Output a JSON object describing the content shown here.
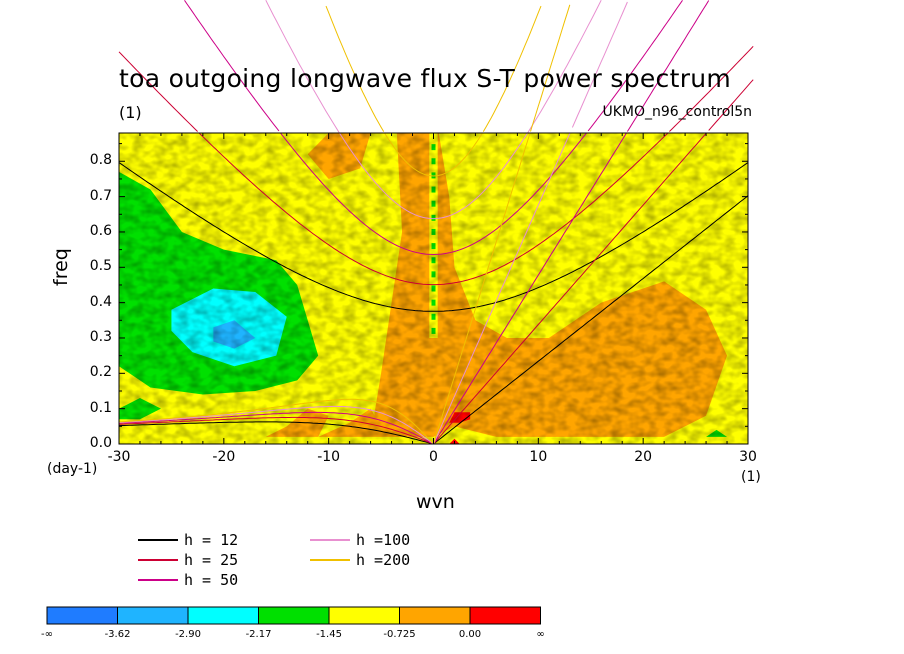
{
  "chart_data": {
    "type": "heatmap",
    "title": "toa outgoing longwave flux S-T power spectrum",
    "subtitle_left": "(1)",
    "subtitle_right": "UKMO_n96_control5n",
    "xlabel": "wvn",
    "ylabel": "freq",
    "x_unit": "(1)",
    "y_unit": "(day-1)",
    "xlim": [
      -30,
      30
    ],
    "ylim": [
      0,
      0.88
    ],
    "xticks": [
      "-30",
      "-20",
      "-10",
      "0",
      "10",
      "20",
      "30"
    ],
    "yticks": [
      "0.0",
      "0.1",
      "0.2",
      "0.3",
      "0.4",
      "0.5",
      "0.6",
      "0.7",
      "0.8"
    ],
    "dispersion_curves": [
      {
        "label": "h = 12",
        "h": 12,
        "color": "#000000"
      },
      {
        "label": "h = 25",
        "h": 25,
        "color": "#cc0033"
      },
      {
        "label": "h = 50",
        "h": 50,
        "color": "#cc0088"
      },
      {
        "label": "h =100",
        "h": 100,
        "color": "#e890d0"
      },
      {
        "label": "h =200",
        "h": 200,
        "color": "#f0c000"
      }
    ],
    "colorbar": {
      "levels": [
        "-∞",
        "-3.62",
        "-2.90",
        "-2.17",
        "-1.45",
        "-0.725",
        "0.00",
        "∞"
      ],
      "colors": [
        "#1f7cff",
        "#1fb4ff",
        "#00ffff",
        "#00e000",
        "#ffff00",
        "#ffa500",
        "#ff0000"
      ]
    },
    "regions": [
      {
        "desc": "background",
        "level_index": 4
      },
      {
        "desc": "green low-power area, negative wavenumbers",
        "level_index": 3
      },
      {
        "desc": "cyan lowest-power core near wvn -20",
        "level_index": 2
      },
      {
        "desc": "orange high-power band near wvn 0 and positive wavenumbers",
        "level_index": 5
      },
      {
        "desc": "red maxima near wvn 2, low freq",
        "level_index": 6
      }
    ]
  }
}
